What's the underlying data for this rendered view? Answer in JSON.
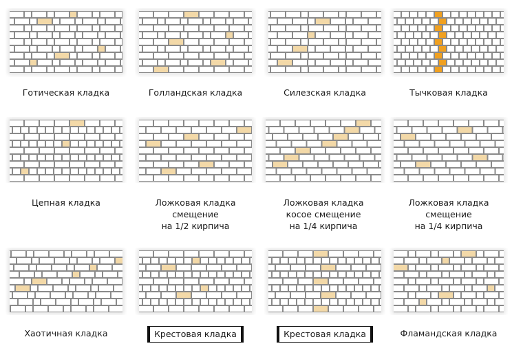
{
  "items": [
    {
      "id": "gothic",
      "caption": "Готическая кладка"
    },
    {
      "id": "dutch",
      "caption": "Голландская кладка"
    },
    {
      "id": "silesian",
      "caption": "Силезская кладка"
    },
    {
      "id": "header",
      "caption": "Тычковая кладка"
    },
    {
      "id": "chain",
      "caption": "Цепная кладка"
    },
    {
      "id": "stretcher-half",
      "caption": "Ложковая кладка\nсмещение\nна 1/2 кирпича"
    },
    {
      "id": "stretcher-skew",
      "caption": "Ложковая кладка\nкосое смещение\nна 1/4 кирпича"
    },
    {
      "id": "stretcher-quarter",
      "caption": "Ложковая кладка\nсмещение\nна 1/4 кирпича"
    },
    {
      "id": "chaotic",
      "caption": "Хаотичная кладка"
    },
    {
      "id": "cross-1",
      "caption": "Крестовая кладка"
    },
    {
      "id": "cross-2",
      "caption": "Крестовая кладка"
    },
    {
      "id": "flemish",
      "caption": "Фламандская кладка"
    }
  ],
  "colors": {
    "brick": "#ffffff",
    "mortar": "#8a8a8a",
    "shadow": "#c8c8c8",
    "highlight_orange": "#f0a020",
    "highlight_light": "#f3d9a8"
  }
}
